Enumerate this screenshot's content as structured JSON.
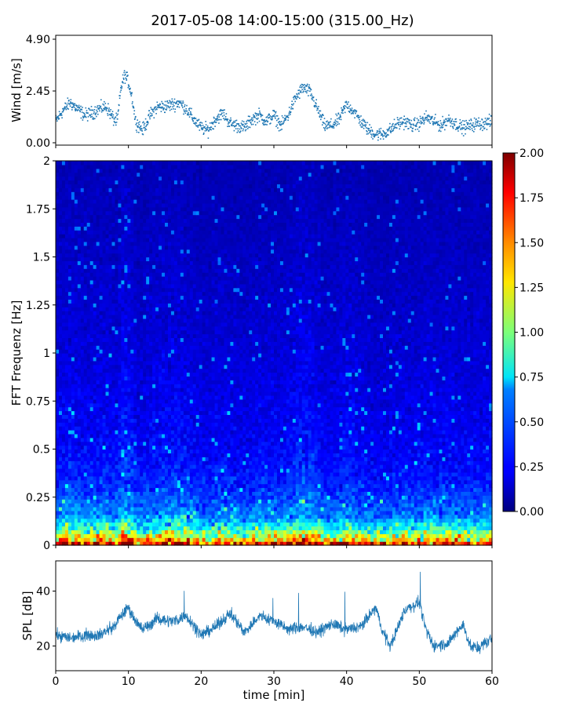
{
  "title": "2017-05-08 14:00-15:00 (315.00_Hz)",
  "colors": {
    "wind": "#1f77b4",
    "spl": "#1f77b4"
  },
  "chart_data": [
    {
      "type": "scatter",
      "name": "wind",
      "ylabel": "Wind [m/s]",
      "xlim": [
        0,
        60
      ],
      "ylim": [
        0,
        4.9
      ],
      "yticks": [
        {
          "value": 0.0,
          "label": "0.00"
        },
        {
          "value": 2.45,
          "label": "2.45"
        },
        {
          "value": 4.9,
          "label": "4.90"
        }
      ],
      "x": [
        0,
        1,
        2,
        3,
        4,
        5,
        6,
        7,
        8,
        8.5,
        9,
        9.5,
        10,
        10.5,
        11,
        12,
        13,
        14,
        15,
        16,
        17,
        18,
        19,
        20,
        21,
        22,
        23,
        24,
        25,
        26,
        27,
        28,
        29,
        30,
        31,
        32,
        33,
        34,
        35,
        36,
        37,
        38,
        39,
        40,
        41,
        42,
        43,
        44,
        45,
        46,
        47,
        48,
        49,
        50,
        51,
        52,
        53,
        54,
        55,
        56,
        57,
        58,
        59,
        60
      ],
      "y": [
        1.0,
        1.5,
        1.9,
        1.6,
        1.3,
        1.4,
        1.6,
        1.7,
        1.1,
        1.0,
        2.6,
        3.2,
        2.9,
        2.2,
        1.0,
        0.6,
        1.3,
        1.7,
        1.7,
        1.8,
        1.9,
        1.6,
        1.1,
        0.7,
        0.6,
        1.1,
        1.4,
        0.9,
        0.8,
        0.7,
        1.1,
        1.3,
        1.0,
        1.3,
        0.8,
        1.3,
        2.1,
        2.6,
        2.4,
        1.6,
        0.8,
        0.8,
        1.1,
        1.8,
        1.5,
        1.0,
        0.6,
        0.4,
        0.4,
        0.6,
        0.9,
        1.0,
        0.8,
        0.9,
        1.2,
        1.0,
        0.8,
        1.1,
        0.9,
        0.7,
        0.8,
        0.9,
        0.9,
        1.0
      ]
    },
    {
      "type": "heatmap",
      "name": "spectrogram",
      "ylabel": "FFT Frequenz [Hz]",
      "xlim": [
        0,
        60
      ],
      "ylim": [
        0,
        2
      ],
      "yticks": [
        {
          "value": 0,
          "label": "0"
        },
        {
          "value": 0.25,
          "label": "0.25"
        },
        {
          "value": 0.5,
          "label": "0.5"
        },
        {
          "value": 0.75,
          "label": "0.75"
        },
        {
          "value": 1,
          "label": "1"
        },
        {
          "value": 1.25,
          "label": "1.25"
        },
        {
          "value": 1.5,
          "label": "1.5"
        },
        {
          "value": 1.75,
          "label": "1.75"
        },
        {
          "value": 2,
          "label": "2"
        }
      ],
      "colormap": "jet",
      "colorbar": {
        "range": [
          0,
          2
        ],
        "ticks": [
          "0.00",
          "0.25",
          "0.50",
          "0.75",
          "1.00",
          "1.25",
          "1.50",
          "1.75",
          "2.00"
        ]
      },
      "mean_level_by_frequency": [
        {
          "freq": 0.0,
          "value": 1.9
        },
        {
          "freq": 0.03,
          "value": 1.3
        },
        {
          "freq": 0.08,
          "value": 0.85
        },
        {
          "freq": 0.15,
          "value": 0.5
        },
        {
          "freq": 0.3,
          "value": 0.32
        },
        {
          "freq": 0.5,
          "value": 0.24
        },
        {
          "freq": 1.0,
          "value": 0.17
        },
        {
          "freq": 1.5,
          "value": 0.13
        },
        {
          "freq": 2.0,
          "value": 0.1
        }
      ]
    },
    {
      "type": "line",
      "name": "spl",
      "xlabel": "time [min]",
      "ylabel": "SPL [dB]",
      "xlim": [
        0,
        60
      ],
      "ylim": [
        11,
        51
      ],
      "xticks": [
        "0",
        "10",
        "20",
        "30",
        "40",
        "50",
        "60"
      ],
      "yticks": [
        {
          "value": 20,
          "label": "20"
        },
        {
          "value": 40,
          "label": "40"
        }
      ],
      "x": [
        0,
        2,
        4,
        6,
        8,
        9,
        10,
        11,
        12,
        14,
        16,
        18,
        20,
        22,
        24,
        26,
        28,
        30,
        32,
        34,
        36,
        38,
        40,
        42,
        44,
        45,
        46,
        48,
        50,
        51,
        52,
        54,
        56,
        57,
        58,
        60
      ],
      "y": [
        24,
        23,
        24,
        24,
        27,
        31,
        34,
        29,
        26,
        30,
        29,
        31,
        24,
        27,
        32,
        25,
        31,
        29,
        26,
        27,
        25,
        28,
        26,
        27,
        34,
        25,
        20,
        33,
        36,
        25,
        20,
        21,
        28,
        20,
        19,
        23
      ]
    }
  ]
}
